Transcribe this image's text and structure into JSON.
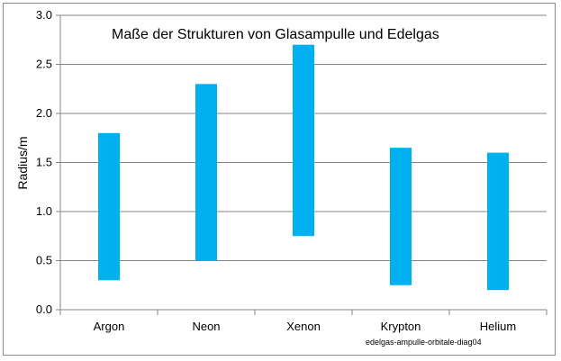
{
  "chart_data": {
    "type": "bar",
    "subtype": "floating-range",
    "title": "Maße der Strukturen von Glasampulle und Edelgas",
    "xlabel": "",
    "ylabel": "Radius/m",
    "ylim": [
      0,
      3.0
    ],
    "y_ticks": [
      "0.0",
      "0.5",
      "1.0",
      "1.5",
      "2.0",
      "2.5",
      "3.0"
    ],
    "y_tick_values": [
      0,
      0.5,
      1.0,
      1.5,
      2.0,
      2.5,
      3.0
    ],
    "grid": true,
    "categories": [
      "Argon",
      "Neon",
      "Xenon",
      "Krypton",
      "Helium"
    ],
    "low": [
      0.3,
      0.5,
      0.75,
      0.25,
      0.2
    ],
    "high": [
      1.8,
      2.3,
      2.7,
      1.65,
      1.6
    ],
    "bar_color": "#00b0f0",
    "grid_color": "#868686",
    "source_note": "edelgas-ampulle-orbitale-diag04"
  }
}
